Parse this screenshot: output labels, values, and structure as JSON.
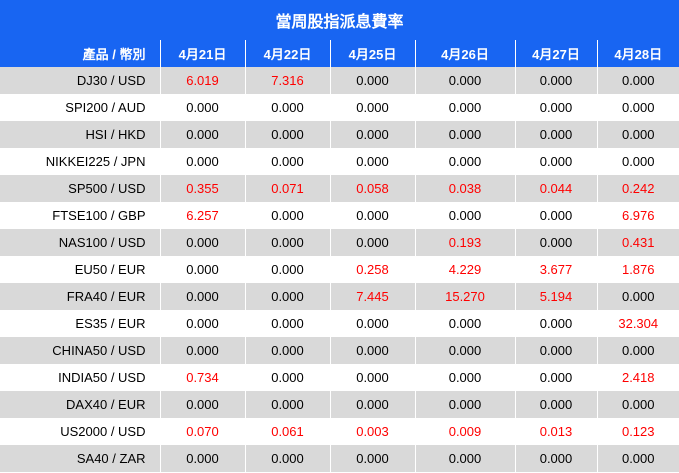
{
  "title": "當周股指派息費率",
  "columns": [
    "產品 / 幣別",
    "4月21日",
    "4月22日",
    "4月25日",
    "4月26日",
    "4月27日",
    "4月28日"
  ],
  "rows": [
    {
      "product": "DJ30 / USD",
      "values": [
        "6.019",
        "7.316",
        "0.000",
        "0.000",
        "0.000",
        "0.000"
      ]
    },
    {
      "product": "SPI200 / AUD",
      "values": [
        "0.000",
        "0.000",
        "0.000",
        "0.000",
        "0.000",
        "0.000"
      ]
    },
    {
      "product": "HSI / HKD",
      "values": [
        "0.000",
        "0.000",
        "0.000",
        "0.000",
        "0.000",
        "0.000"
      ]
    },
    {
      "product": "NIKKEI225 / JPN",
      "values": [
        "0.000",
        "0.000",
        "0.000",
        "0.000",
        "0.000",
        "0.000"
      ]
    },
    {
      "product": "SP500 / USD",
      "values": [
        "0.355",
        "0.071",
        "0.058",
        "0.038",
        "0.044",
        "0.242"
      ]
    },
    {
      "product": "FTSE100 / GBP",
      "values": [
        "6.257",
        "0.000",
        "0.000",
        "0.000",
        "0.000",
        "6.976"
      ]
    },
    {
      "product": "NAS100 / USD",
      "values": [
        "0.000",
        "0.000",
        "0.000",
        "0.193",
        "0.000",
        "0.431"
      ]
    },
    {
      "product": "EU50 / EUR",
      "values": [
        "0.000",
        "0.000",
        "0.258",
        "4.229",
        "3.677",
        "1.876"
      ]
    },
    {
      "product": "FRA40 / EUR",
      "values": [
        "0.000",
        "0.000",
        "7.445",
        "15.270",
        "5.194",
        "0.000"
      ]
    },
    {
      "product": "ES35 / EUR",
      "values": [
        "0.000",
        "0.000",
        "0.000",
        "0.000",
        "0.000",
        "32.304"
      ]
    },
    {
      "product": "CHINA50 / USD",
      "values": [
        "0.000",
        "0.000",
        "0.000",
        "0.000",
        "0.000",
        "0.000"
      ]
    },
    {
      "product": "INDIA50 / USD",
      "values": [
        "0.734",
        "0.000",
        "0.000",
        "0.000",
        "0.000",
        "2.418"
      ]
    },
    {
      "product": "DAX40 / EUR",
      "values": [
        "0.000",
        "0.000",
        "0.000",
        "0.000",
        "0.000",
        "0.000"
      ]
    },
    {
      "product": "US2000 / USD",
      "values": [
        "0.070",
        "0.061",
        "0.003",
        "0.009",
        "0.013",
        "0.123"
      ]
    },
    {
      "product": "SA40 / ZAR",
      "values": [
        "0.000",
        "0.000",
        "0.000",
        "0.000",
        "0.000",
        "0.000"
      ]
    }
  ],
  "colors": {
    "header_bg": "#1865f2",
    "row_odd": "#d9d9d9",
    "row_even": "#ffffff",
    "nonzero_text": "#ff0000"
  }
}
